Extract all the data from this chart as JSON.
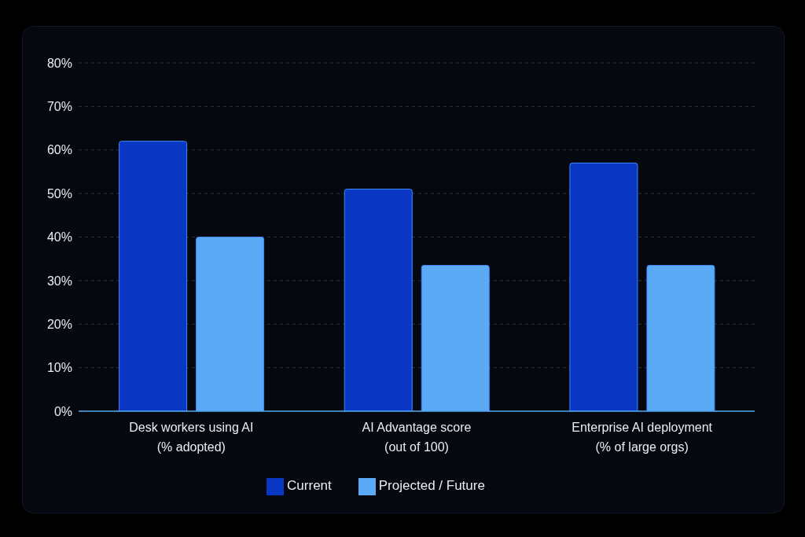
{
  "chart_data": {
    "type": "bar",
    "categories": [
      "Desk workers using AI\n(% adopted)",
      "AI Advantage score\n(out of 100)",
      "Enterprise AI deployment\n(% of large orgs)"
    ],
    "series": [
      {
        "name": "Current",
        "color": "#0a36c4",
        "values": [
          62,
          51,
          57
        ]
      },
      {
        "name": "Projected / Future",
        "color": "#5aaaf6",
        "values": [
          40,
          33.5,
          33.5
        ]
      }
    ],
    "ylim": [
      0,
      80
    ],
    "yticks": [
      {
        "value": 0,
        "label": "0%"
      },
      {
        "value": 10,
        "label": "10%"
      },
      {
        "value": 20,
        "label": "20%"
      },
      {
        "value": 30,
        "label": "30%"
      },
      {
        "value": 40,
        "label": "40%"
      },
      {
        "value": 50,
        "label": "50%"
      },
      {
        "value": 60,
        "label": "60%"
      },
      {
        "value": 70,
        "label": "70%"
      },
      {
        "value": 80,
        "label": "80%"
      }
    ],
    "grid": "y",
    "legend": "bottom"
  }
}
